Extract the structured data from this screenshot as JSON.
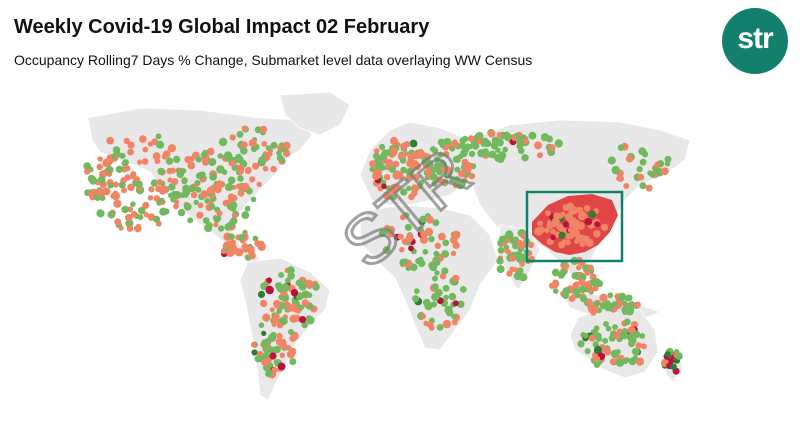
{
  "header": {
    "title": "Weekly Covid-19 Global Impact 02 February",
    "subtitle": "Occupancy Rolling7 Days % Change, Submarket level data overlaying WW Census"
  },
  "logo": {
    "text": "str",
    "color": "#12806c"
  },
  "watermark": {
    "text": "STR"
  },
  "colors": {
    "land": "#e8e8e8",
    "decline": "#f08465",
    "growth": "#72b85e",
    "strong_decline": "#b8123e",
    "strong_growth": "#2e7d32",
    "china_fill": "#e04646",
    "highlight_box": "#12806c"
  },
  "highlight": {
    "region": "China"
  }
}
